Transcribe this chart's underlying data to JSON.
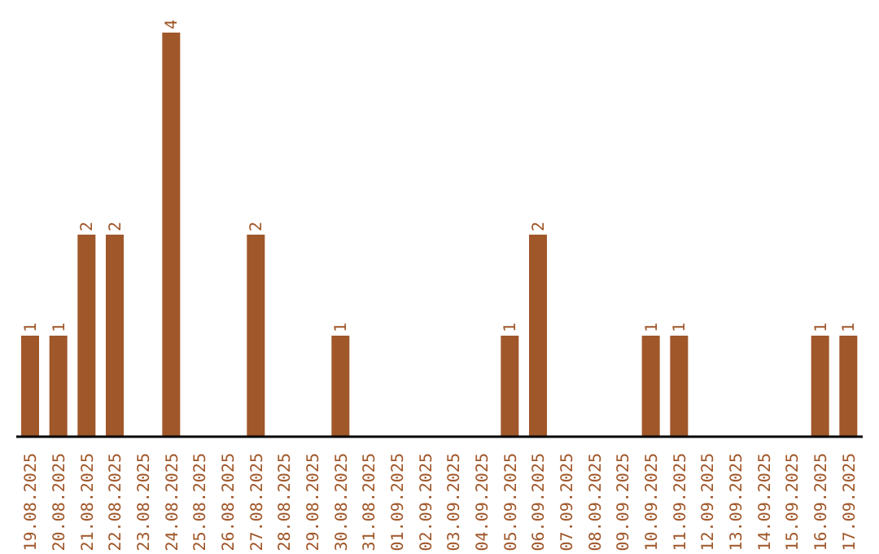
{
  "chart_data": {
    "type": "bar",
    "categories": [
      "19.08.2025",
      "20.08.2025",
      "21.08.2025",
      "22.08.2025",
      "23.08.2025",
      "24.08.2025",
      "25.08.2025",
      "26.08.2025",
      "27.08.2025",
      "28.08.2025",
      "29.08.2025",
      "30.08.2025",
      "31.08.2025",
      "01.09.2025",
      "02.09.2025",
      "03.09.2025",
      "04.09.2025",
      "05.09.2025",
      "06.09.2025",
      "07.09.2025",
      "08.09.2025",
      "09.09.2025",
      "10.09.2025",
      "11.09.2025",
      "12.09.2025",
      "13.09.2025",
      "14.09.2025",
      "15.09.2025",
      "16.09.2025",
      "17.09.2025"
    ],
    "values": [
      1,
      1,
      2,
      2,
      0,
      4,
      0,
      0,
      2,
      0,
      0,
      1,
      0,
      0,
      0,
      0,
      0,
      1,
      2,
      0,
      0,
      0,
      1,
      1,
      0,
      0,
      0,
      0,
      1,
      1
    ],
    "value_labels": [
      "1",
      "1",
      "2",
      "2",
      null,
      "4",
      null,
      null,
      "2",
      null,
      null,
      "1",
      null,
      null,
      null,
      null,
      null,
      "1",
      "2",
      null,
      null,
      null,
      "1",
      "1",
      null,
      null,
      null,
      null,
      "1",
      "1"
    ],
    "color": "#a0572a",
    "grid": false,
    "legend": false
  }
}
